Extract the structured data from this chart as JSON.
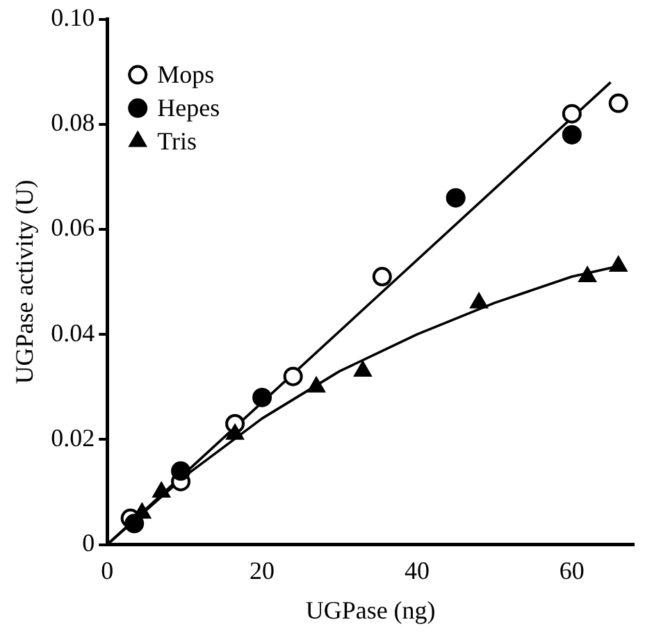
{
  "chart_data": {
    "type": "scatter",
    "xlabel": "UGPase (ng)",
    "ylabel": "UGPase activity (U)",
    "xlim": [
      0,
      68
    ],
    "xticks": [
      0,
      20,
      40,
      60
    ],
    "ylim": [
      0,
      0.1
    ],
    "yticks": [
      0,
      0.02,
      0.04,
      0.06,
      0.08,
      {
        "value": 0.1,
        "label": "0.10"
      }
    ],
    "grid": false,
    "legend": "top left",
    "series": [
      {
        "name": "Mops",
        "color": "#ffffff",
        "marker": "circle",
        "x": [
          3,
          9.5,
          16.5,
          24,
          35.5,
          60,
          66
        ],
        "values": [
          0.005,
          0.012,
          0.023,
          0.032,
          0.051,
          0.082,
          0.084
        ]
      },
      {
        "name": "Hepes",
        "color": "#000000",
        "marker": "circle",
        "x": [
          3.5,
          9.5,
          20,
          45,
          60
        ],
        "values": [
          0.004,
          0.014,
          0.028,
          0.066,
          0.078
        ]
      },
      {
        "name": "Tris",
        "color": "#000000",
        "marker": "triangle",
        "x": [
          4.5,
          7,
          16.5,
          27,
          33,
          48,
          62,
          66
        ],
        "values": [
          0.006,
          0.01,
          0.021,
          0.03,
          0.033,
          0.046,
          0.051,
          0.053
        ]
      },
      {
        "type": "line",
        "color": "#000000",
        "marker": "none",
        "x": [
          0,
          65
        ],
        "values": [
          0,
          0.088
        ]
      },
      {
        "type": "line",
        "color": "#000000",
        "marker": "none",
        "x": [
          0,
          10,
          20,
          30,
          40,
          50,
          60,
          66
        ],
        "values": [
          0,
          0.013,
          0.024,
          0.033,
          0.04,
          0.046,
          0.051,
          0.053
        ]
      }
    ]
  }
}
